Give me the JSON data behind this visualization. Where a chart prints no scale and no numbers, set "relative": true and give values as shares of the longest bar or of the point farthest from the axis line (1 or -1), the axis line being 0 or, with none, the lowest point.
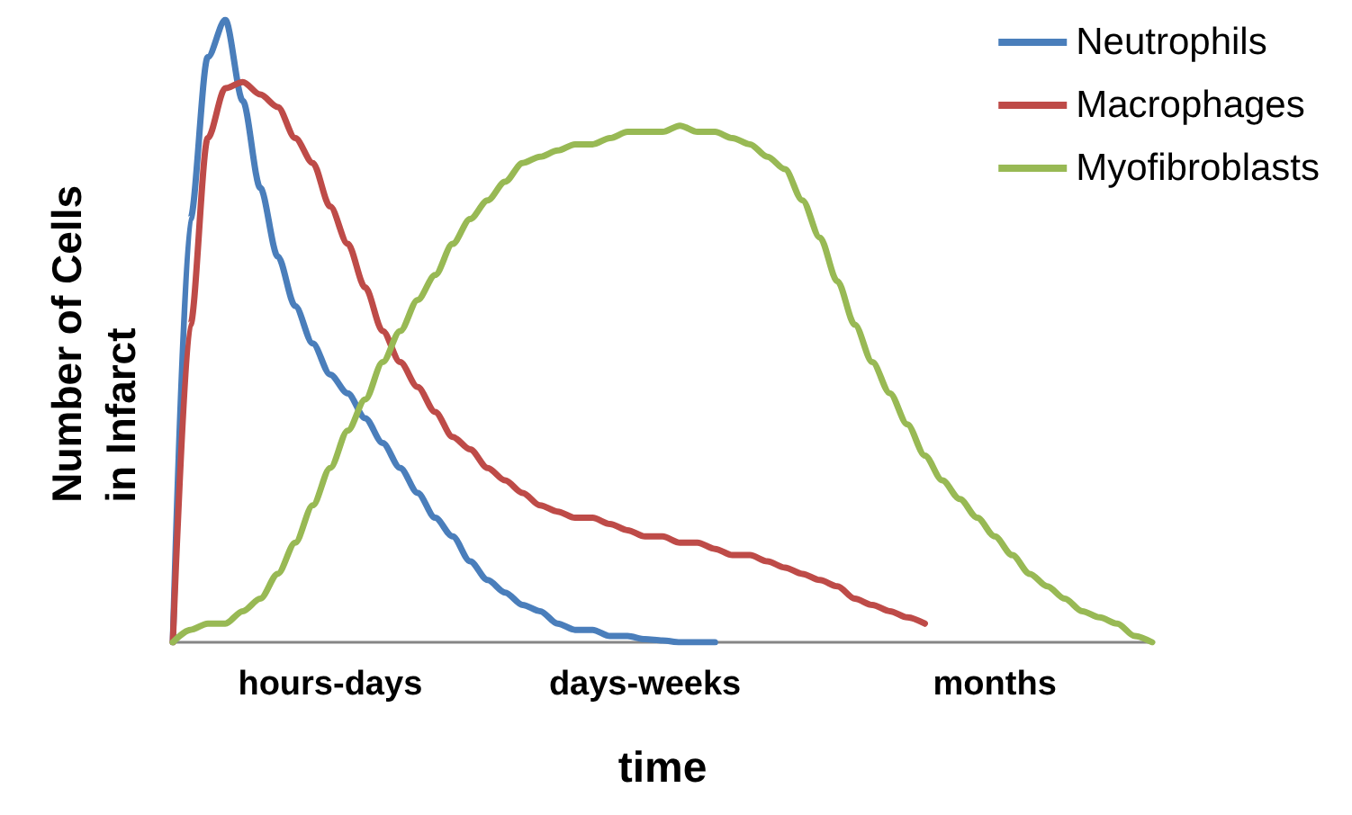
{
  "chart_data": {
    "type": "line",
    "relative": true,
    "xlabel": "time",
    "ylabel": "Number of Cells\nin Infarct",
    "categories": [
      null,
      null,
      null,
      null,
      null,
      null,
      null,
      null,
      null,
      "hours-days",
      null,
      null,
      null,
      null,
      null,
      null,
      null,
      null,
      null,
      null,
      null,
      null,
      null,
      null,
      null,
      null,
      null,
      "days-weeks",
      null,
      null,
      null,
      null,
      null,
      null,
      null,
      null,
      null,
      null,
      null,
      null,
      null,
      null,
      null,
      null,
      null,
      null,
      null,
      "months",
      null,
      null,
      null,
      null,
      null,
      null,
      null,
      null,
      null
    ],
    "series": [
      {
        "name": "Neutrophils",
        "color": "#4a7ebb",
        "values": [
          0,
          0.68,
          0.94,
          1,
          0.87,
          0.73,
          0.62,
          0.54,
          0.48,
          0.43,
          0.4,
          0.36,
          0.32,
          0.28,
          0.24,
          0.2,
          0.17,
          0.13,
          0.1,
          0.08,
          0.06,
          0.05,
          0.03,
          0.02,
          0.02,
          0.01,
          0.01,
          0.005,
          0.003,
          0,
          0,
          0,
          null,
          null,
          null,
          null,
          null,
          null,
          null,
          null,
          null,
          null,
          null,
          null,
          null,
          null,
          null,
          null,
          null,
          null,
          null,
          null,
          null,
          null,
          null,
          null,
          null
        ]
      },
      {
        "name": "Macrophages",
        "color": "#be4b48",
        "values": [
          0,
          0.51,
          0.81,
          0.89,
          0.9,
          0.88,
          0.86,
          0.81,
          0.77,
          0.7,
          0.64,
          0.57,
          0.5,
          0.45,
          0.41,
          0.37,
          0.33,
          0.31,
          0.28,
          0.26,
          0.24,
          0.22,
          0.21,
          0.2,
          0.2,
          0.19,
          0.18,
          0.17,
          0.17,
          0.16,
          0.16,
          0.15,
          0.14,
          0.14,
          0.13,
          0.12,
          0.11,
          0.1,
          0.09,
          0.07,
          0.06,
          0.05,
          0.04,
          0.03,
          null,
          null,
          null,
          null,
          null,
          null,
          null,
          null,
          null,
          null,
          null,
          null,
          null
        ]
      },
      {
        "name": "Myofibroblasts",
        "color": "#98b954",
        "values": [
          0,
          0.02,
          0.03,
          0.03,
          0.05,
          0.07,
          0.11,
          0.16,
          0.22,
          0.28,
          0.34,
          0.39,
          0.45,
          0.5,
          0.55,
          0.59,
          0.64,
          0.68,
          0.71,
          0.74,
          0.77,
          0.78,
          0.79,
          0.8,
          0.8,
          0.81,
          0.82,
          0.82,
          0.82,
          0.83,
          0.82,
          0.82,
          0.81,
          0.8,
          0.78,
          0.76,
          0.71,
          0.65,
          0.58,
          0.51,
          0.45,
          0.4,
          0.35,
          0.3,
          0.26,
          0.23,
          0.2,
          0.17,
          0.14,
          0.11,
          0.09,
          0.07,
          0.05,
          0.04,
          0.03,
          0.01,
          0
        ]
      }
    ],
    "grid": false,
    "legend": "top right",
    "marker": "none",
    "line_style": "solid"
  }
}
